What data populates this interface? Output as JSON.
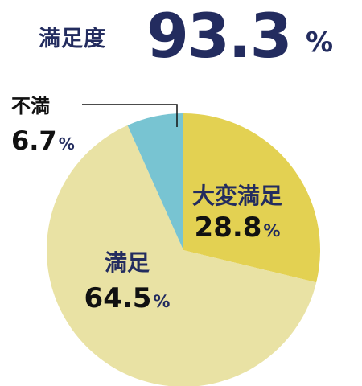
{
  "headline": {
    "label": "満足度",
    "value": "93.3",
    "unit": "%"
  },
  "chart_data": {
    "type": "pie",
    "title": "",
    "unit": "%",
    "slices": [
      {
        "label": "大変満足",
        "value": 28.8,
        "display": "28.8",
        "color": "#e3d152",
        "text_color": "#232c5f",
        "value_color": "#111111"
      },
      {
        "label": "満足",
        "value": 64.5,
        "display": "64.5",
        "color": "#e9e2a4",
        "text_color": "#232c5f",
        "value_color": "#111111"
      },
      {
        "label": "不満",
        "value": 6.7,
        "display": "6.7",
        "color": "#78c4d2",
        "text_color": "#111111",
        "value_color": "#111111"
      }
    ]
  }
}
